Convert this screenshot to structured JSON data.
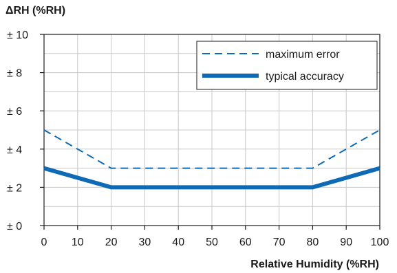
{
  "chart_data": {
    "type": "line",
    "ylabel": "ΔRH (%RH)",
    "xlabel": "Relative Humidity (%RH)",
    "xlim": [
      0,
      100
    ],
    "ylim": [
      0,
      10
    ],
    "x_ticks": [
      0,
      10,
      20,
      30,
      40,
      50,
      60,
      70,
      80,
      90,
      100
    ],
    "x_tick_labels": [
      "0",
      "10",
      "20",
      "30",
      "40",
      "50",
      "60",
      "70",
      "80",
      "90",
      "100"
    ],
    "y_ticks": [
      0,
      2,
      4,
      6,
      8,
      10
    ],
    "y_tick_labels": [
      "± 0",
      "± 2",
      "± 4",
      "± 6",
      "± 8",
      "± 10"
    ],
    "y_minor_step": 1,
    "grid": true,
    "legend_position": "top-right",
    "colors": {
      "series": "#0e6ab4",
      "grid": "#c8c8c8",
      "axis": "#1a1a1a"
    },
    "series": [
      {
        "name": "maximum error",
        "style": "dashed",
        "x": [
          0,
          20,
          80,
          100
        ],
        "y": [
          5,
          3,
          3,
          5
        ]
      },
      {
        "name": "typical accuracy",
        "style": "solid-thick",
        "x": [
          0,
          20,
          80,
          100
        ],
        "y": [
          3,
          2,
          2,
          3
        ]
      }
    ]
  }
}
